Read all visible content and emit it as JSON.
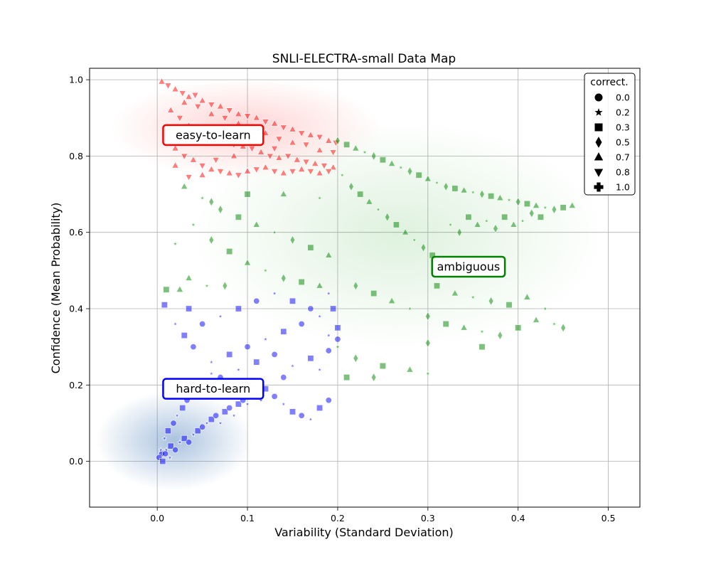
{
  "chart_data": {
    "type": "scatter",
    "title": "SNLI-ELECTRA-small Data Map",
    "xlabel": "Variability (Standard Deviation)",
    "ylabel": "Confidence (Mean Probability)",
    "xlim": [
      -0.075,
      0.535
    ],
    "ylim": [
      -0.12,
      1.03
    ],
    "x_ticks": [
      0.0,
      0.1,
      0.2,
      0.3,
      0.4,
      0.5
    ],
    "x_tick_labels": [
      "0.0",
      "0.1",
      "0.2",
      "0.3",
      "0.4",
      "0.5"
    ],
    "y_ticks": [
      0.0,
      0.2,
      0.4,
      0.6,
      0.8,
      1.0
    ],
    "y_tick_labels": [
      "0.0",
      "0.2",
      "0.4",
      "0.6",
      "0.8",
      "1.0"
    ],
    "grid": true,
    "legend": {
      "title": "correct.",
      "placement": "top-right",
      "entries": [
        {
          "label": "0.0",
          "marker": "circle"
        },
        {
          "label": "0.2",
          "marker": "star"
        },
        {
          "label": "0.3",
          "marker": "square"
        },
        {
          "label": "0.5",
          "marker": "diamond"
        },
        {
          "label": "0.7",
          "marker": "triangle-up"
        },
        {
          "label": "0.8",
          "marker": "triangle-down"
        },
        {
          "label": "1.0",
          "marker": "plus"
        }
      ]
    },
    "annotations": [
      {
        "text": "easy-to-learn",
        "x": 0.062,
        "y": 0.855,
        "color": "#ff0000"
      },
      {
        "text": "ambiguous",
        "x": 0.345,
        "y": 0.51,
        "color": "#008000"
      },
      {
        "text": "hard-to-learn",
        "x": 0.062,
        "y": 0.19,
        "color": "#0000ff"
      }
    ],
    "series": [
      {
        "region": "easy-to-learn",
        "color": "#ff0000",
        "markers": [
          "triangle-up",
          "triangle-down"
        ],
        "approx_x_range": [
          0.0,
          0.2
        ],
        "approx_y_range": [
          0.74,
          1.0
        ],
        "points": [
          [
            0.005,
            0.995
          ],
          [
            0.012,
            0.985
          ],
          [
            0.02,
            0.975
          ],
          [
            0.028,
            0.965
          ],
          [
            0.035,
            0.955
          ],
          [
            0.042,
            0.96
          ],
          [
            0.05,
            0.945
          ],
          [
            0.06,
            0.935
          ],
          [
            0.07,
            0.93
          ],
          [
            0.08,
            0.92
          ],
          [
            0.09,
            0.91
          ],
          [
            0.1,
            0.905
          ],
          [
            0.11,
            0.9
          ],
          [
            0.12,
            0.89
          ],
          [
            0.13,
            0.885
          ],
          [
            0.14,
            0.875
          ],
          [
            0.15,
            0.87
          ],
          [
            0.16,
            0.86
          ],
          [
            0.17,
            0.855
          ],
          [
            0.18,
            0.85
          ],
          [
            0.19,
            0.84
          ],
          [
            0.198,
            0.835
          ],
          [
            0.015,
            0.92
          ],
          [
            0.025,
            0.9
          ],
          [
            0.035,
            0.88
          ],
          [
            0.045,
            0.87
          ],
          [
            0.055,
            0.86
          ],
          [
            0.065,
            0.85
          ],
          [
            0.075,
            0.845
          ],
          [
            0.085,
            0.83
          ],
          [
            0.095,
            0.825
          ],
          [
            0.105,
            0.82
          ],
          [
            0.115,
            0.81
          ],
          [
            0.125,
            0.8
          ],
          [
            0.135,
            0.795
          ],
          [
            0.145,
            0.8
          ],
          [
            0.155,
            0.79
          ],
          [
            0.165,
            0.785
          ],
          [
            0.175,
            0.78
          ],
          [
            0.185,
            0.775
          ],
          [
            0.195,
            0.77
          ],
          [
            0.01,
            0.85
          ],
          [
            0.02,
            0.82
          ],
          [
            0.03,
            0.8
          ],
          [
            0.04,
            0.79
          ],
          [
            0.05,
            0.775
          ],
          [
            0.06,
            0.765
          ],
          [
            0.07,
            0.76
          ],
          [
            0.08,
            0.755
          ],
          [
            0.09,
            0.75
          ],
          [
            0.1,
            0.76
          ],
          [
            0.11,
            0.765
          ],
          [
            0.12,
            0.77
          ],
          [
            0.13,
            0.76
          ],
          [
            0.14,
            0.755
          ],
          [
            0.15,
            0.76
          ],
          [
            0.16,
            0.765
          ],
          [
            0.17,
            0.76
          ],
          [
            0.18,
            0.755
          ],
          [
            0.19,
            0.76
          ],
          [
            0.03,
            0.94
          ],
          [
            0.045,
            0.93
          ],
          [
            0.06,
            0.91
          ],
          [
            0.075,
            0.9
          ],
          [
            0.09,
            0.885
          ],
          [
            0.105,
            0.87
          ],
          [
            0.12,
            0.86
          ],
          [
            0.135,
            0.845
          ],
          [
            0.15,
            0.835
          ],
          [
            0.165,
            0.83
          ],
          [
            0.18,
            0.815
          ],
          [
            0.195,
            0.81
          ],
          [
            0.02,
            0.775
          ],
          [
            0.035,
            0.745
          ],
          [
            0.05,
            0.75
          ],
          [
            0.065,
            0.79
          ],
          [
            0.085,
            0.8
          ],
          [
            0.1,
            0.835
          ],
          [
            0.115,
            0.845
          ],
          [
            0.13,
            0.82
          ]
        ]
      },
      {
        "region": "ambiguous",
        "color": "#008000",
        "markers": [
          "diamond",
          "square",
          "triangle-up",
          "star"
        ],
        "approx_x_range": [
          0.0,
          0.47
        ],
        "approx_y_range": [
          0.3,
          0.85
        ],
        "points": [
          [
            0.2,
            0.84
          ],
          [
            0.21,
            0.83
          ],
          [
            0.22,
            0.82
          ],
          [
            0.23,
            0.81
          ],
          [
            0.24,
            0.8
          ],
          [
            0.25,
            0.79
          ],
          [
            0.26,
            0.78
          ],
          [
            0.27,
            0.77
          ],
          [
            0.28,
            0.76
          ],
          [
            0.29,
            0.75
          ],
          [
            0.3,
            0.74
          ],
          [
            0.31,
            0.73
          ],
          [
            0.32,
            0.72
          ],
          [
            0.33,
            0.715
          ],
          [
            0.34,
            0.71
          ],
          [
            0.35,
            0.705
          ],
          [
            0.36,
            0.7
          ],
          [
            0.37,
            0.695
          ],
          [
            0.38,
            0.69
          ],
          [
            0.39,
            0.685
          ],
          [
            0.4,
            0.68
          ],
          [
            0.41,
            0.675
          ],
          [
            0.42,
            0.67
          ],
          [
            0.43,
            0.665
          ],
          [
            0.44,
            0.66
          ],
          [
            0.45,
            0.665
          ],
          [
            0.46,
            0.67
          ],
          [
            0.205,
            0.75
          ],
          [
            0.215,
            0.72
          ],
          [
            0.225,
            0.7
          ],
          [
            0.235,
            0.68
          ],
          [
            0.245,
            0.66
          ],
          [
            0.255,
            0.64
          ],
          [
            0.265,
            0.62
          ],
          [
            0.275,
            0.6
          ],
          [
            0.285,
            0.58
          ],
          [
            0.295,
            0.56
          ],
          [
            0.305,
            0.54
          ],
          [
            0.315,
            0.52
          ],
          [
            0.325,
            0.62
          ],
          [
            0.335,
            0.6
          ],
          [
            0.345,
            0.64
          ],
          [
            0.355,
            0.62
          ],
          [
            0.365,
            0.63
          ],
          [
            0.375,
            0.61
          ],
          [
            0.385,
            0.64
          ],
          [
            0.395,
            0.62
          ],
          [
            0.405,
            0.63
          ],
          [
            0.415,
            0.65
          ],
          [
            0.425,
            0.64
          ],
          [
            0.03,
            0.72
          ],
          [
            0.05,
            0.69
          ],
          [
            0.07,
            0.66
          ],
          [
            0.09,
            0.64
          ],
          [
            0.11,
            0.62
          ],
          [
            0.13,
            0.6
          ],
          [
            0.15,
            0.58
          ],
          [
            0.17,
            0.56
          ],
          [
            0.19,
            0.54
          ],
          [
            0.04,
            0.62
          ],
          [
            0.06,
            0.58
          ],
          [
            0.08,
            0.55
          ],
          [
            0.1,
            0.52
          ],
          [
            0.12,
            0.5
          ],
          [
            0.14,
            0.48
          ],
          [
            0.16,
            0.47
          ],
          [
            0.18,
            0.46
          ],
          [
            0.02,
            0.57
          ],
          [
            0.06,
            0.68
          ],
          [
            0.1,
            0.7
          ],
          [
            0.14,
            0.7
          ],
          [
            0.18,
            0.69
          ],
          [
            0.22,
            0.46
          ],
          [
            0.24,
            0.44
          ],
          [
            0.26,
            0.42
          ],
          [
            0.28,
            0.4
          ],
          [
            0.3,
            0.38
          ],
          [
            0.32,
            0.36
          ],
          [
            0.34,
            0.35
          ],
          [
            0.36,
            0.34
          ],
          [
            0.38,
            0.33
          ],
          [
            0.4,
            0.35
          ],
          [
            0.42,
            0.37
          ],
          [
            0.44,
            0.36
          ],
          [
            0.45,
            0.35
          ],
          [
            0.31,
            0.46
          ],
          [
            0.33,
            0.44
          ],
          [
            0.35,
            0.43
          ],
          [
            0.37,
            0.42
          ],
          [
            0.39,
            0.41
          ],
          [
            0.41,
            0.43
          ],
          [
            0.43,
            0.4
          ],
          [
            0.3,
            0.31
          ],
          [
            0.36,
            0.3
          ],
          [
            0.035,
            0.48
          ],
          [
            0.055,
            0.46
          ],
          [
            0.075,
            0.46
          ],
          [
            0.01,
            0.45
          ],
          [
            0.025,
            0.45
          ],
          [
            0.2,
            0.3
          ],
          [
            0.22,
            0.27
          ],
          [
            0.25,
            0.25
          ],
          [
            0.28,
            0.24
          ],
          [
            0.3,
            0.23
          ],
          [
            0.24,
            0.22
          ],
          [
            0.21,
            0.22
          ]
        ]
      },
      {
        "region": "hard-to-learn",
        "color": "#0000ff",
        "markers": [
          "circle",
          "star",
          "square"
        ],
        "approx_x_range": [
          0.0,
          0.2
        ],
        "approx_y_range": [
          0.0,
          0.46
        ],
        "points": [
          [
            0.005,
            0.02
          ],
          [
            0.01,
            0.03
          ],
          [
            0.015,
            0.04
          ],
          [
            0.02,
            0.03
          ],
          [
            0.025,
            0.05
          ],
          [
            0.03,
            0.06
          ],
          [
            0.035,
            0.05
          ],
          [
            0.04,
            0.07
          ],
          [
            0.045,
            0.08
          ],
          [
            0.05,
            0.09
          ],
          [
            0.055,
            0.1
          ],
          [
            0.06,
            0.11
          ],
          [
            0.065,
            0.12
          ],
          [
            0.07,
            0.1
          ],
          [
            0.075,
            0.13
          ],
          [
            0.08,
            0.14
          ],
          [
            0.085,
            0.12
          ],
          [
            0.09,
            0.15
          ],
          [
            0.095,
            0.16
          ],
          [
            0.1,
            0.15
          ],
          [
            0.105,
            0.17
          ],
          [
            0.11,
            0.18
          ],
          [
            0.115,
            0.16
          ],
          [
            0.12,
            0.19
          ],
          [
            0.13,
            0.17
          ],
          [
            0.14,
            0.15
          ],
          [
            0.15,
            0.13
          ],
          [
            0.16,
            0.12
          ],
          [
            0.17,
            0.11
          ],
          [
            0.18,
            0.14
          ],
          [
            0.19,
            0.16
          ],
          [
            0.008,
            0.06
          ],
          [
            0.012,
            0.08
          ],
          [
            0.018,
            0.1
          ],
          [
            0.022,
            0.12
          ],
          [
            0.028,
            0.14
          ],
          [
            0.033,
            0.16
          ],
          [
            0.038,
            0.18
          ],
          [
            0.043,
            0.2
          ],
          [
            0.048,
            0.17
          ],
          [
            0.06,
            0.26
          ],
          [
            0.08,
            0.28
          ],
          [
            0.1,
            0.3
          ],
          [
            0.12,
            0.32
          ],
          [
            0.14,
            0.34
          ],
          [
            0.16,
            0.36
          ],
          [
            0.18,
            0.38
          ],
          [
            0.195,
            0.4
          ],
          [
            0.05,
            0.36
          ],
          [
            0.07,
            0.38
          ],
          [
            0.09,
            0.4
          ],
          [
            0.11,
            0.42
          ],
          [
            0.13,
            0.44
          ],
          [
            0.15,
            0.42
          ],
          [
            0.17,
            0.4
          ],
          [
            0.19,
            0.44
          ],
          [
            0.03,
            0.33
          ],
          [
            0.04,
            0.3
          ],
          [
            0.02,
            0.36
          ],
          [
            0.035,
            0.4
          ],
          [
            0.07,
            0.22
          ],
          [
            0.09,
            0.24
          ],
          [
            0.11,
            0.26
          ],
          [
            0.13,
            0.28
          ],
          [
            0.15,
            0.25
          ],
          [
            0.17,
            0.27
          ],
          [
            0.19,
            0.29
          ],
          [
            0.06,
            0.23
          ],
          [
            0.1,
            0.2
          ],
          [
            0.14,
            0.22
          ],
          [
            0.18,
            0.24
          ],
          [
            0.2,
            0.35
          ],
          [
            0.2,
            0.32
          ],
          [
            0.19,
            0.33
          ],
          [
            0.008,
            0.41
          ],
          [
            0.002,
            0.01
          ],
          [
            0.004,
            0.03
          ],
          [
            0.006,
            0.0
          ],
          [
            0.009,
            0.02
          ],
          [
            0.014,
            0.01
          ]
        ]
      }
    ]
  }
}
